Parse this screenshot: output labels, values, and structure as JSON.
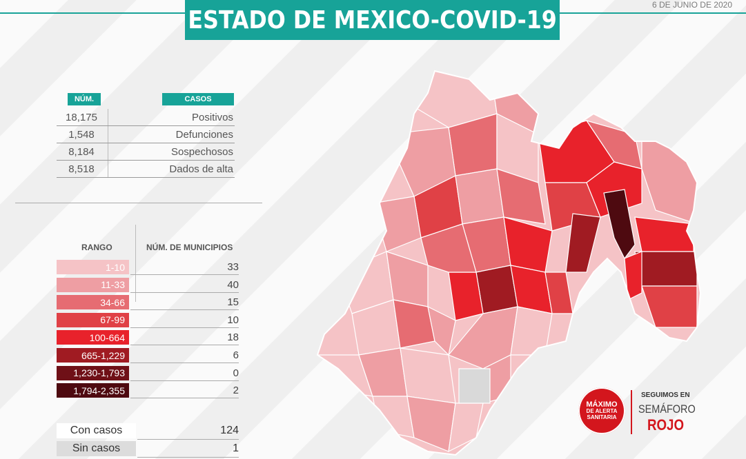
{
  "header": {
    "title": "ESTADO DE MEXICO-COVID-19",
    "date": "6 DE JUNIO DE 2020",
    "accent": "#17a398"
  },
  "stats": {
    "col_num": "NÚM.",
    "col_casos": "CASOS",
    "rows": [
      {
        "num": "18,175",
        "label": "Positivos"
      },
      {
        "num": "1,548",
        "label": "Defunciones"
      },
      {
        "num": "8,184",
        "label": "Sospechosos"
      },
      {
        "num": "8,518",
        "label": "Dados de alta"
      }
    ]
  },
  "legend": {
    "col_rango": "RANGO",
    "col_municipios": "NÚM. DE MUNICIPIOS",
    "rows": [
      {
        "range": "1-10",
        "count": "33",
        "color": "#f5c3c6",
        "text_color": "#ffffff"
      },
      {
        "range": "11-33",
        "count": "40",
        "color": "#ee9ea3",
        "text_color": "#ffffff"
      },
      {
        "range": "34-66",
        "count": "15",
        "color": "#e66c72",
        "text_color": "#ffffff"
      },
      {
        "range": "67-99",
        "count": "10",
        "color": "#e04146",
        "text_color": "#ffffff"
      },
      {
        "range": "100-664",
        "count": "18",
        "color": "#e8222b",
        "text_color": "#ffffff"
      },
      {
        "range": "665-1,229",
        "count": "6",
        "color": "#a01b22",
        "text_color": "#ffffff"
      },
      {
        "range": "1,230-1,793",
        "count": "0",
        "color": "#6f1017",
        "text_color": "#ffffff"
      },
      {
        "range": "1,794-2,355",
        "count": "2",
        "color": "#4e0a10",
        "text_color": "#ffffff"
      }
    ]
  },
  "summary": [
    {
      "label": "Con casos",
      "value": "124",
      "bg": "#ffffff"
    },
    {
      "label": "Sin casos",
      "value": "1",
      "bg": "#dcdcdc"
    }
  ],
  "badge": {
    "line1": "MÁXIMO",
    "line2": "DE ALERTA",
    "line3": "SANITARIA",
    "color": "#d3161d"
  },
  "semaforo": {
    "line1": "SEGUIMOS EN",
    "line2": "SEMÁFORO",
    "line3": "ROJO"
  }
}
